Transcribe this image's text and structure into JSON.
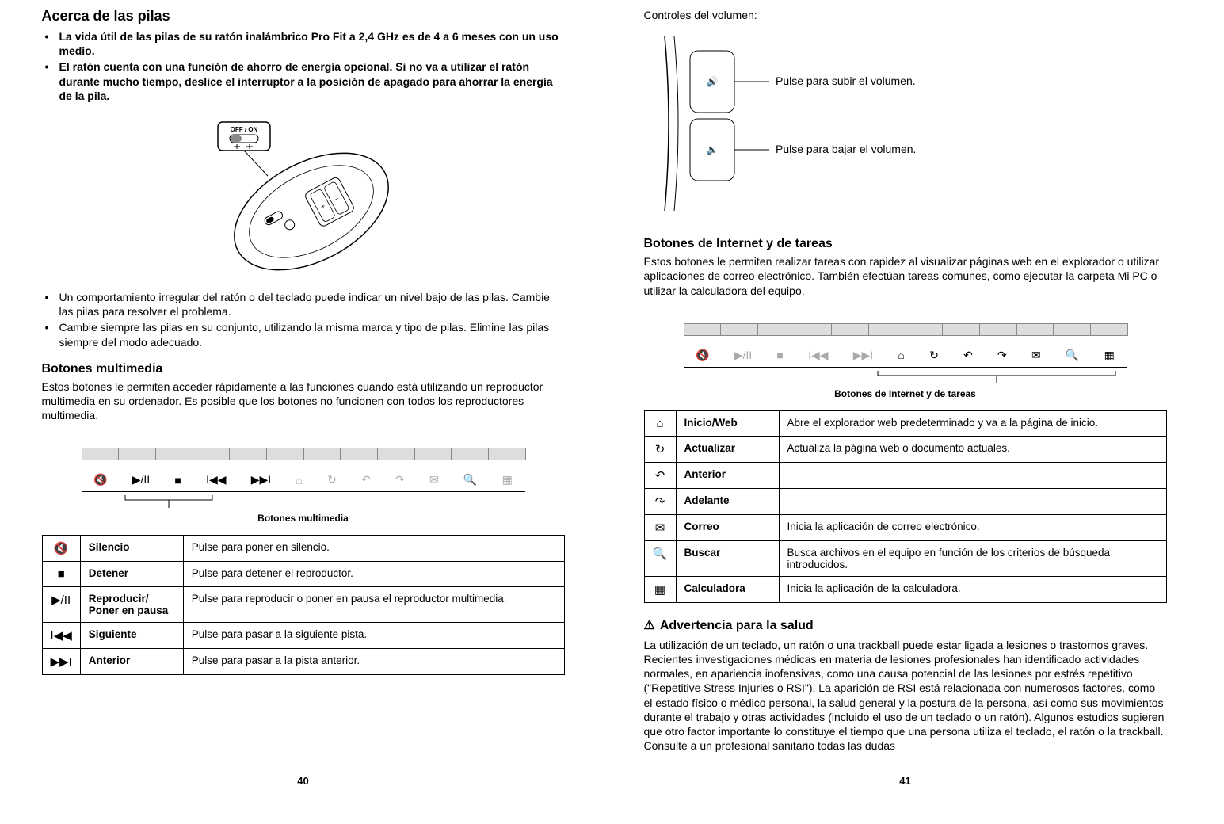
{
  "left": {
    "h_battery": "Acerca de las pilas",
    "battery_bullets": [
      "La vida útil de las pilas de su ratón inalámbrico Pro Fit a 2,4 GHz es de 4 a 6 meses con un uso medio.",
      "El ratón cuenta con una función de ahorro de energía opcional. Si no va a utilizar el ratón durante mucho tiempo, deslice el interruptor a la posición de apagado para ahorrar la energía de la pila."
    ],
    "switch_label": "OFF / ON",
    "battery_bullets2": [
      "Un comportamiento irregular del ratón o del teclado puede indicar un nivel bajo de las pilas. Cambie las pilas para resolver el problema.",
      "Cambie siempre las pilas en su conjunto, utilizando la misma marca y tipo de pilas. Elimine las pilas siempre del modo adecuado."
    ],
    "h_mm": "Botones multimedia",
    "mm_intro": "Estos botones le permiten acceder rápidamente a las funciones cuando está utilizando un reproductor multimedia en su ordenador. Es posible que los botones no funcionen con todos los reproductores multimedia.",
    "mm_label": "Botones multimedia",
    "mm_table": [
      {
        "icon": "🔇",
        "name": "Silencio",
        "desc": "Pulse para poner en silencio."
      },
      {
        "icon": "■",
        "name": "Detener",
        "desc": "Pulse para detener el reproductor."
      },
      {
        "icon": "▶/II",
        "name": "Reproducir/\nPoner en pausa",
        "desc": "Pulse para reproducir o poner en pausa el reproductor multimedia."
      },
      {
        "icon": "I◀◀",
        "name": "Siguiente",
        "desc": "Pulse para pasar a la siguiente pista."
      },
      {
        "icon": "▶▶I",
        "name": "Anterior",
        "desc": "Pulse para pasar a la pista anterior."
      }
    ],
    "pagenum": "40"
  },
  "right": {
    "vol_heading": "Controles del volumen:",
    "vol_up": "Pulse para subir el volumen.",
    "vol_down": "Pulse para bajar el volumen.",
    "h_it": "Botones de Internet y de tareas",
    "it_intro": "Estos botones le permiten realizar tareas con rapidez al visualizar páginas web en el explorador o utilizar aplicaciones de correo electrónico. También efectúan tareas comunes, como ejecutar la carpeta Mi PC o utilizar la calculadora del equipo.",
    "it_label": "Botones de Internet y de tareas",
    "it_table": [
      {
        "icon": "⌂",
        "name": "Inicio/Web",
        "desc": "Abre el explorador web predeterminado y va a la página de inicio."
      },
      {
        "icon": "↻",
        "name": "Actualizar",
        "desc": "Actualiza la página web o documento actuales."
      },
      {
        "icon": "↶",
        "name": "Anterior",
        "desc": ""
      },
      {
        "icon": "↷",
        "name": "Adelante",
        "desc": ""
      },
      {
        "icon": "✉",
        "name": "Correo",
        "desc": "Inicia la aplicación de correo electrónico."
      },
      {
        "icon": "🔍",
        "name": "Buscar",
        "desc": "Busca archivos en el equipo en función de los criterios de búsqueda introducidos."
      },
      {
        "icon": "▦",
        "name": "Calculadora",
        "desc": "Inicia la aplicación de la calculadora."
      }
    ],
    "h_warn": "Advertencia para la salud",
    "warn_body": "La utilización de un teclado, un ratón o una trackball puede estar ligada a lesiones o trastornos graves. Recientes investigaciones médicas en materia de lesiones profesionales han identificado actividades normales, en apariencia inofensivas, como una causa potencial de las lesiones por estrés repetitivo (\"Repetitive Stress Injuries o RSI\"). La aparición de RSI está relacionada con numerosos factores, como el estado físico o médico personal, la salud general y la postura de la persona, así como sus movimientos durante el trabajo y otras actividades (incluido el uso de un teclado o un ratón). Algunos estudios sugieren que otro factor importante lo constituye el tiempo que una persona utiliza el teclado, el ratón o la trackball. Consulte a un profesional sanitario todas las dudas",
    "pagenum": "41"
  },
  "strip_icons": [
    "🔇",
    "▶/II",
    "■",
    "I◀◀",
    "▶▶I",
    "⌂",
    "↻",
    "↶",
    "↷",
    "✉",
    "🔍",
    "▦"
  ]
}
